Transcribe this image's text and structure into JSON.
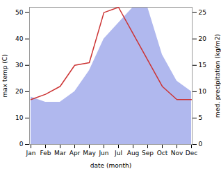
{
  "chart_data": {
    "type": "line",
    "categories": [
      "Jan",
      "Feb",
      "Mar",
      "Apr",
      "May",
      "Jun",
      "Jul",
      "Aug",
      "Sep",
      "Oct",
      "Nov",
      "Dec"
    ],
    "series": [
      {
        "type": "area",
        "axis": "y2",
        "color": "#b0b8ee",
        "values": [
          9,
          8,
          8,
          10,
          14,
          20,
          23,
          26,
          26,
          17,
          12,
          10
        ]
      },
      {
        "type": "line",
        "color": "#cc3333",
        "values": [
          17,
          19,
          22,
          30,
          31,
          50,
          52,
          42,
          32,
          22,
          17,
          17
        ]
      }
    ],
    "xlabel": "date (month)",
    "ylabel": "max temp (C)",
    "y2label": "med. precipitation (kg/m2)",
    "ylim": [
      0,
      52
    ],
    "yticks": [
      0,
      10,
      20,
      30,
      40,
      50
    ],
    "y2lim": [
      0,
      26
    ],
    "y2ticks": [
      0,
      5,
      10,
      15,
      20,
      25
    ],
    "grid": false
  }
}
